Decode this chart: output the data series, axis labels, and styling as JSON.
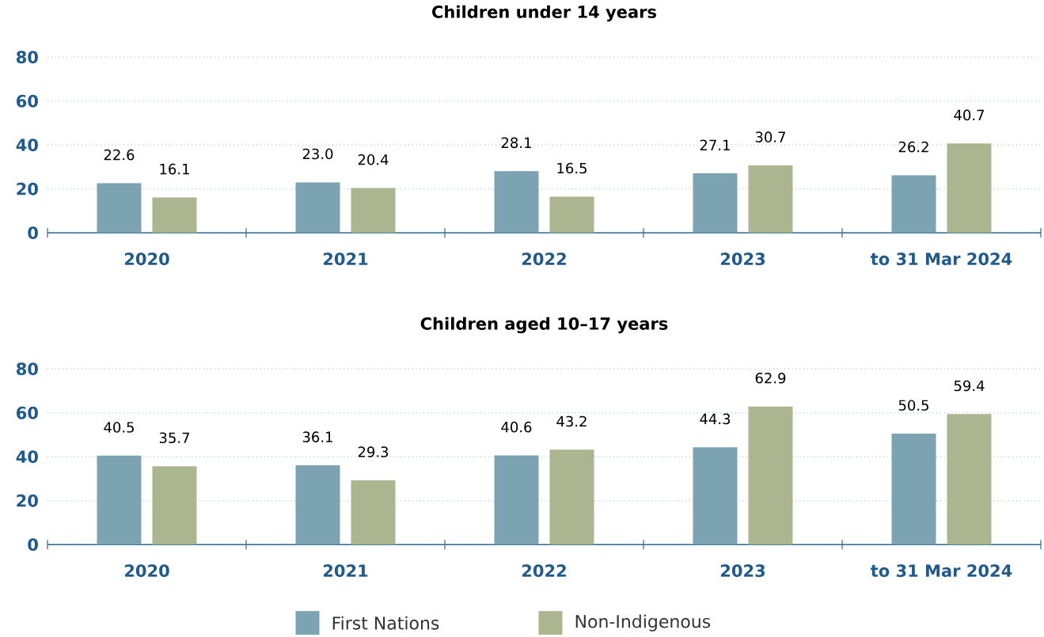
{
  "chart_data": [
    {
      "type": "bar",
      "title": "Children under 14 years",
      "categories": [
        "2020",
        "2021",
        "2022",
        "2023",
        "to 31 Mar 2024"
      ],
      "ylim": [
        0,
        80
      ],
      "yticks": [
        0,
        20,
        40,
        60,
        80
      ],
      "grid": "y",
      "series": [
        {
          "color": "#7ba3b1",
          "values": [
            22.6,
            23.0,
            28.1,
            27.1,
            26.2
          ],
          "value_labels": [
            "22.6",
            "23.0",
            "28.1",
            "27.1",
            "26.2"
          ]
        },
        {
          "color": "#abb691",
          "values": [
            16.1,
            20.4,
            16.5,
            30.7,
            40.7
          ],
          "value_labels": [
            "16.1",
            "20.4",
            "16.5",
            "30.7",
            "40.7"
          ]
        }
      ]
    },
    {
      "type": "bar",
      "title": "Children aged 10–17 years",
      "categories": [
        "2020",
        "2021",
        "2022",
        "2023",
        "to 31 Mar 2024"
      ],
      "ylim": [
        0,
        80
      ],
      "yticks": [
        0,
        20,
        40,
        60,
        80
      ],
      "grid": "y",
      "legend": "bottom",
      "series": [
        {
          "name": "First Nations",
          "color": "#7ba3b1",
          "values": [
            40.5,
            36.1,
            40.6,
            44.3,
            50.5
          ],
          "value_labels": [
            "40.5",
            "36.1",
            "40.6",
            "44.3",
            "50.5"
          ]
        },
        {
          "name": "Non-Indigenous",
          "color": "#abb691",
          "values": [
            35.7,
            29.3,
            43.2,
            62.9,
            59.4
          ],
          "value_labels": [
            "35.7",
            "29.3",
            "43.2",
            "62.9",
            "59.4"
          ]
        }
      ]
    }
  ]
}
